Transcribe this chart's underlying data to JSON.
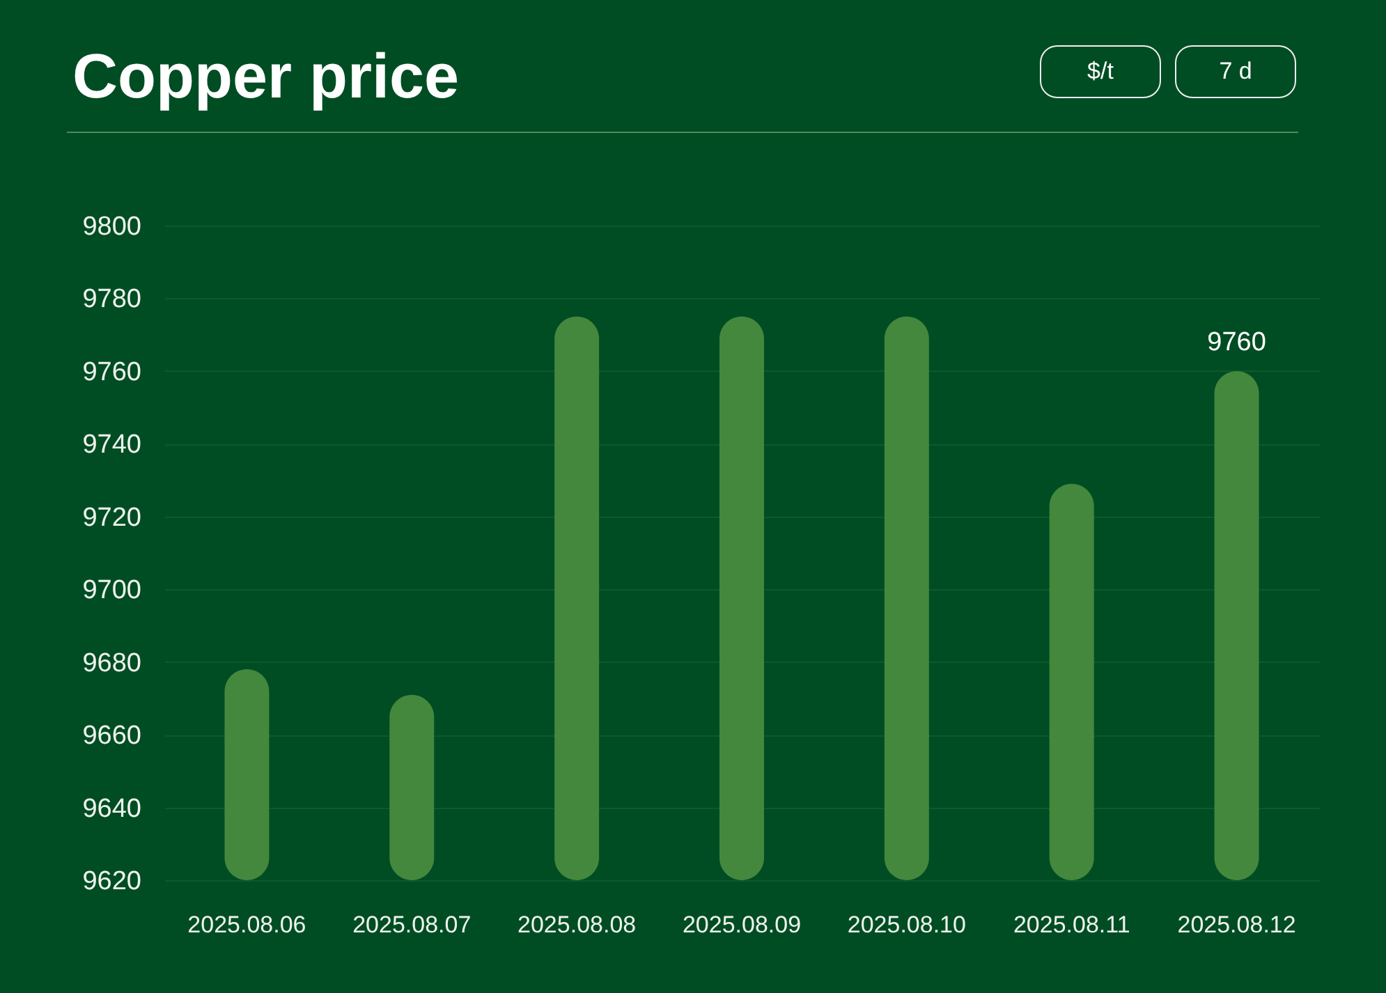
{
  "chart_data": {
    "type": "bar",
    "title": "Copper price",
    "annotations": [
      "$/t",
      "7 d"
    ],
    "categories": [
      "2025.08.06",
      "2025.08.07",
      "2025.08.08",
      "2025.08.09",
      "2025.08.10",
      "2025.08.11",
      "2025.08.12"
    ],
    "values": [
      9678,
      9671,
      9775,
      9775,
      9775,
      9729,
      9760
    ],
    "color": "#44883e",
    "value_labels": [
      null,
      null,
      null,
      null,
      null,
      null,
      "9760"
    ],
    "ylim": [
      9620,
      9800
    ],
    "yticks": [
      9620,
      9640,
      9660,
      9680,
      9700,
      9720,
      9740,
      9760,
      9780,
      9800
    ],
    "grid": "y"
  }
}
